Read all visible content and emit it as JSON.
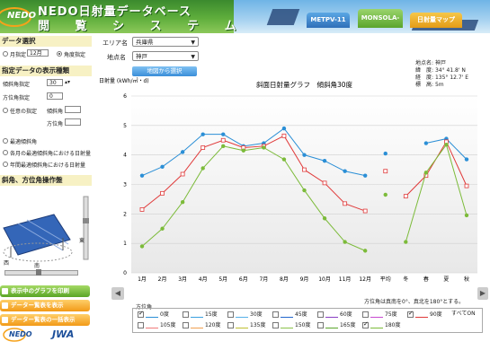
{
  "header": {
    "logo": "NEDO",
    "title_line1": "NEDO日射量データベース",
    "title_line2": "閲 覧 シ ス テ ム",
    "tabs": [
      "METPV-11",
      "MONSOLA-11",
      "日射量マップ"
    ]
  },
  "left": {
    "section1_title": "データ選択",
    "month_label": "月指定",
    "month_value": "12月",
    "angle_label": "角度指定",
    "section2_title": "指定データの表示種類",
    "tilt_label": "傾斜角指定",
    "tilt_value": "30",
    "azimuth_label": "方位角指定",
    "azimuth_value": "0",
    "any_label": "任意の指定",
    "tilt_word": "傾斜角",
    "azimuth_word": "方位角",
    "opt1": "最適傾斜角",
    "opt2": "各月の最適傾斜角における日射量",
    "opt3": "年間最適傾斜角における日射量",
    "section3_title": "斜角、方位角操作盤",
    "dir_west": "西",
    "dir_south": "南",
    "dir_east": "東",
    "btn_print": "表示中のグラフを印刷",
    "btn_table": "データー覧表を表示",
    "btn_all": "データー覧表の一括表示",
    "footer_logo1": "NEDO",
    "footer_logo2": "JWA"
  },
  "main": {
    "area_label": "エリア名",
    "area_value": "兵庫県",
    "point_label": "地点名",
    "point_value": "神戸",
    "map_button": "地図から選択",
    "info": {
      "point_name_label": "地点名",
      "point_name": "神戸",
      "lat_label": "緯　度",
      "lat": "34° 41.8' N",
      "lon_label": "経　度",
      "lon": "135° 12.7' E",
      "alt_label": "標　高",
      "alt": "5m"
    },
    "azimuth_note": "方位角は真南を0°、真北を180°とする。",
    "all_on": "すべてON",
    "legend_title": "方位角"
  },
  "chart_data": {
    "type": "line",
    "title": "斜面日射量グラフ　傾斜角30度",
    "ylabel": "日射量 (kWh/㎡・d)",
    "ylim": [
      0,
      6
    ],
    "y_ticks": [
      0,
      1,
      2,
      3,
      4,
      5,
      6
    ],
    "categories": [
      "1月",
      "2月",
      "3月",
      "4月",
      "5月",
      "6月",
      "7月",
      "8月",
      "9月",
      "10月",
      "11月",
      "12月",
      "平均",
      "冬",
      "春",
      "夏",
      "秋"
    ],
    "series": [
      {
        "name": "0度",
        "color": "#2b8fd6",
        "values": [
          3.3,
          3.6,
          4.1,
          4.7,
          4.7,
          4.3,
          4.4,
          4.9,
          4.0,
          3.8,
          3.45,
          3.3,
          4.05,
          null,
          4.4,
          4.55,
          3.85
        ]
      },
      {
        "name": "90度",
        "color": "#e03a3a",
        "values": [
          2.15,
          2.7,
          3.35,
          4.25,
          4.5,
          4.25,
          4.3,
          4.65,
          3.5,
          3.05,
          2.35,
          2.1,
          3.45,
          2.6,
          3.3,
          4.45,
          2.95
        ]
      },
      {
        "name": "180度",
        "color": "#7cbb3a",
        "values": [
          0.9,
          1.5,
          2.4,
          3.55,
          4.3,
          4.15,
          4.25,
          3.85,
          2.8,
          1.85,
          1.05,
          0.75,
          2.65,
          1.05,
          3.4,
          4.35,
          1.95
        ]
      }
    ],
    "legend": {
      "row1": [
        "0度",
        "15度",
        "30度",
        "45度",
        "60度",
        "75度",
        "90度"
      ],
      "row2": [
        "105度",
        "120度",
        "135度",
        "150度",
        "165度",
        "180度"
      ],
      "checked": [
        "0度",
        "90度",
        "180度"
      ],
      "colors": [
        "#2b8fd6",
        "#3aa0e0",
        "#55b0e8",
        "#2266cc",
        "#8a3fc2",
        "#c74ad0",
        "#e03a3a",
        "#f07a7a",
        "#f0a050",
        "#c0c030",
        "#8bc34a",
        "#5aa52c",
        "#7cbb3a"
      ]
    }
  }
}
